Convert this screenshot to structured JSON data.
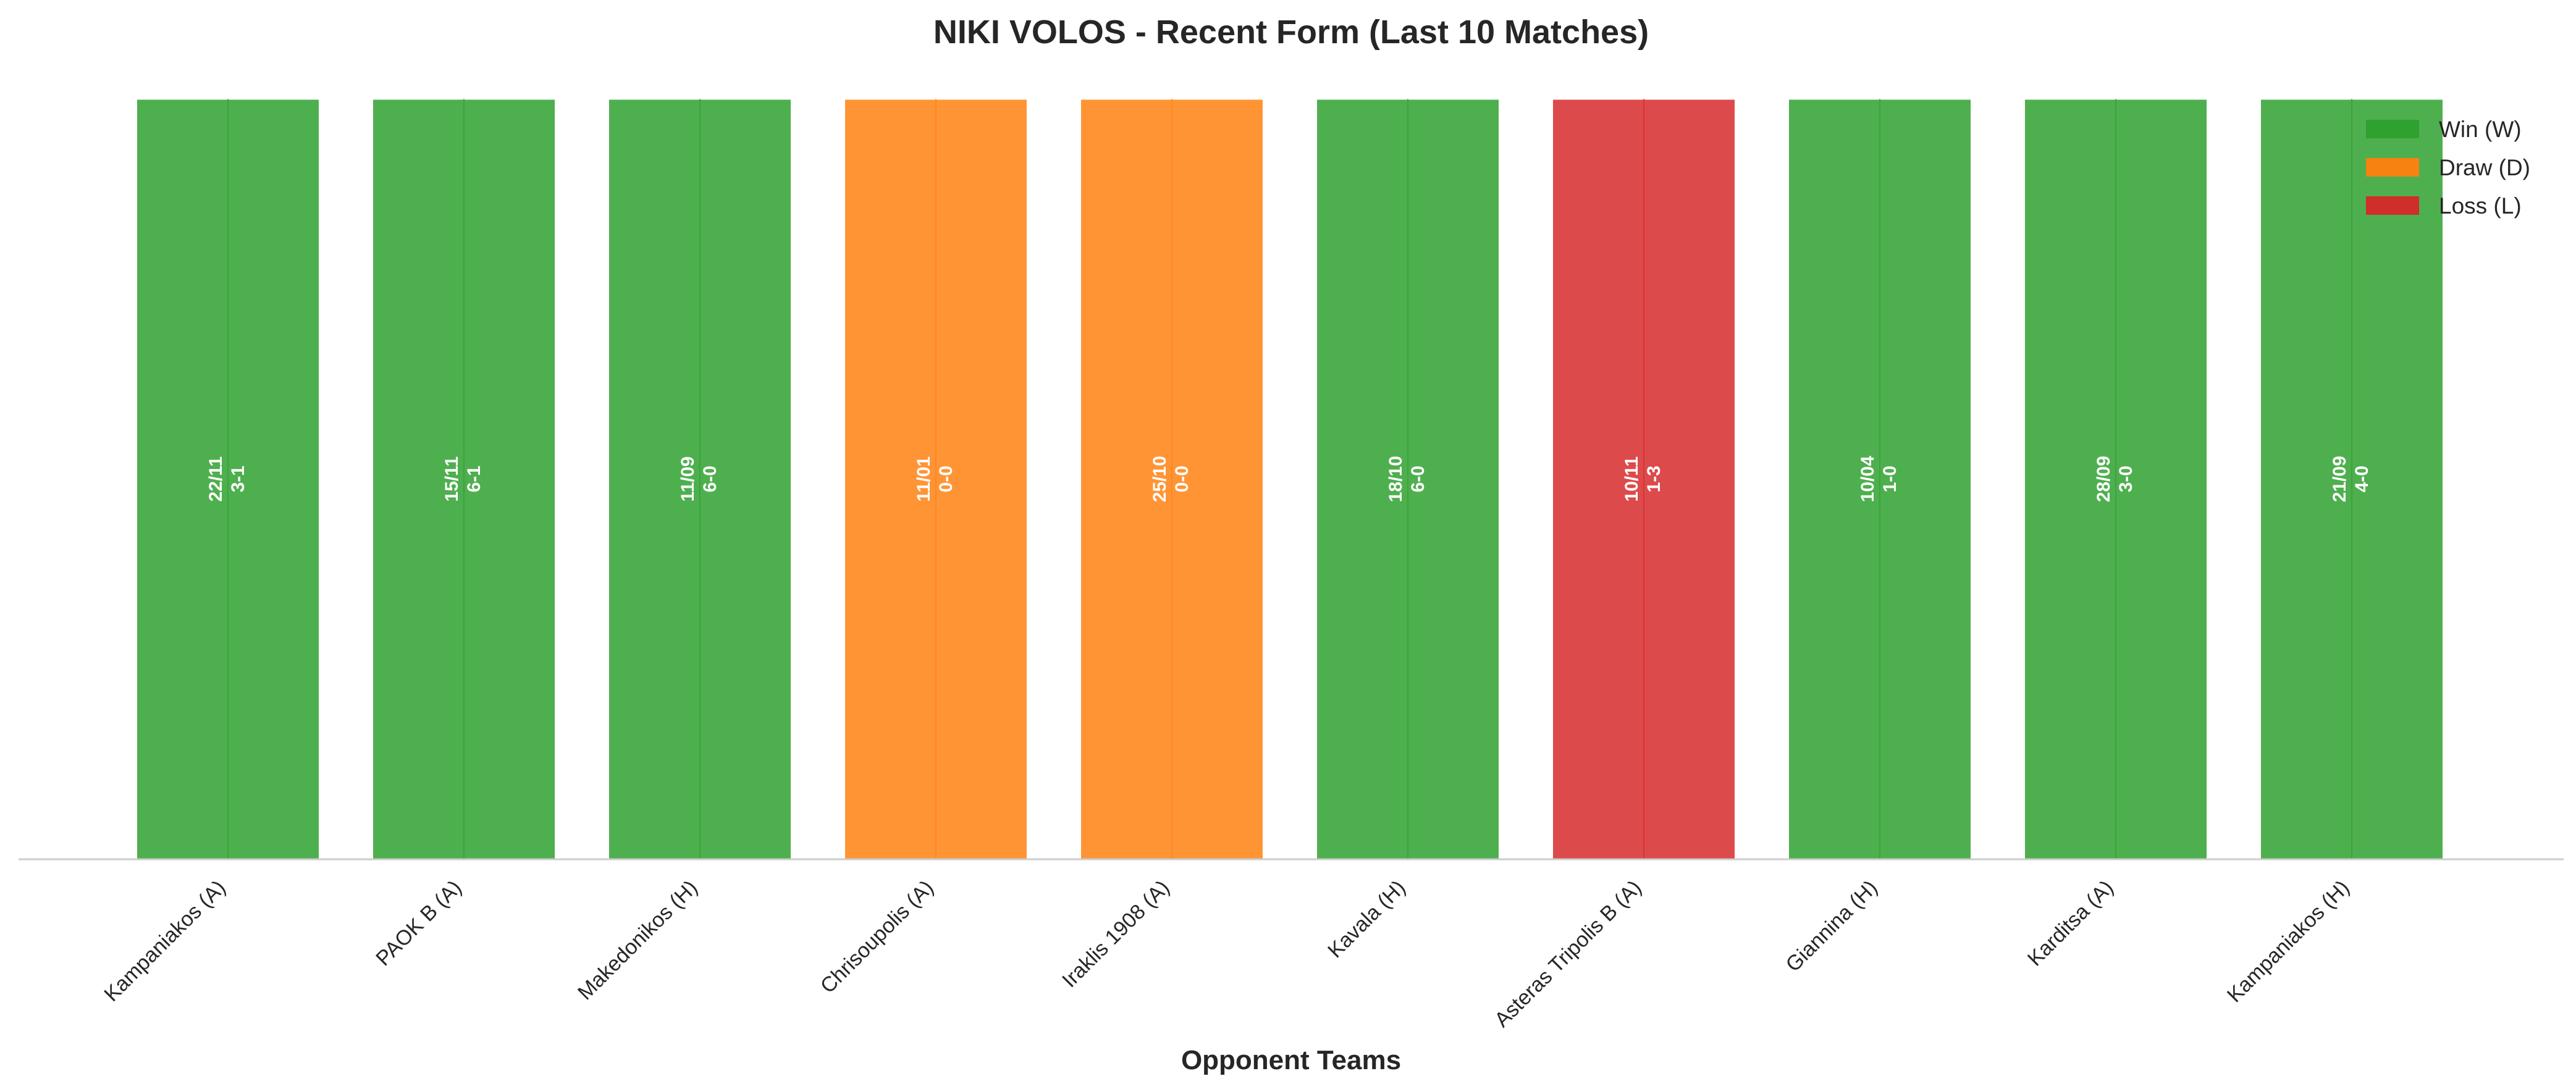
{
  "chart_data": {
    "type": "bar",
    "title": "NIKI VOLOS - Recent Form (Last 10 Matches)",
    "xlabel": "Opponent Teams",
    "ylabel": "",
    "ylim": [
      0,
      1
    ],
    "grid": false,
    "legend_position": "top-right",
    "categories": [
      "Kampaniakos (A)",
      "PAOK B (A)",
      "Makedonikos (H)",
      "Chrisoupolis (A)",
      "Iraklis 1908 (A)",
      "Kavala (H)",
      "Asteras Tripolis B (A)",
      "Giannina (H)",
      "Karditsa (A)",
      "Kampaniakos (H)"
    ],
    "values": [
      1,
      1,
      1,
      1,
      1,
      1,
      1,
      1,
      1,
      1
    ],
    "results": [
      "W",
      "W",
      "W",
      "D",
      "D",
      "W",
      "L",
      "W",
      "W",
      "W"
    ],
    "dates": [
      "22/11",
      "15/11",
      "11/09",
      "11/01",
      "25/10",
      "18/10",
      "10/11",
      "10/04",
      "28/09",
      "21/09"
    ],
    "scores": [
      "3-1",
      "6-1",
      "6-0",
      "0-0",
      "0-0",
      "6-0",
      "1-3",
      "1-0",
      "3-0",
      "4-0"
    ],
    "legend": [
      {
        "key": "W",
        "label": "Win (W)",
        "color": "#2ca02c"
      },
      {
        "key": "D",
        "label": "Draw (D)",
        "color": "#ff7f0e"
      },
      {
        "key": "L",
        "label": "Loss (L)",
        "color": "#d62728"
      }
    ]
  }
}
